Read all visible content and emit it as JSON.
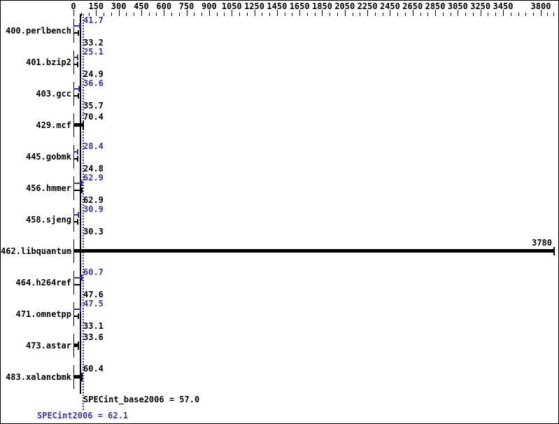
{
  "chart_data": {
    "type": "bar",
    "orientation": "horizontal",
    "title": "",
    "xlabel": "",
    "ylabel": "",
    "x_axis": {
      "tick_labels": [
        "0",
        "150",
        "300",
        "450",
        "600",
        "750",
        "900",
        "1050",
        "1250",
        "1450",
        "1650",
        "1850",
        "2050",
        "2250",
        "2450",
        "2650",
        "2850",
        "3050",
        "3250",
        "3450",
        "3800"
      ],
      "min": 0,
      "max": 3800,
      "minor_ticks_between_majors": 2
    },
    "colors": {
      "peak": "#3333b4",
      "base": "#000000"
    },
    "rows": [
      {
        "name": "400.perlbench",
        "peak": 41.7,
        "base": 33.2,
        "peak_label": "41.7",
        "base_label": "33.2"
      },
      {
        "name": "401.bzip2",
        "peak": 25.1,
        "base": 24.9,
        "peak_label": "25.1",
        "base_label": "24.9"
      },
      {
        "name": "403.gcc",
        "peak": 36.6,
        "base": 35.7,
        "peak_label": "36.6",
        "base_label": "35.7"
      },
      {
        "name": "429.mcf",
        "value": 70.4,
        "value_label": "70.4"
      },
      {
        "name": "445.gobmk",
        "peak": 28.4,
        "base": 24.8,
        "peak_label": "28.4",
        "base_label": "24.8"
      },
      {
        "name": "456.hmmer",
        "peak": 62.9,
        "base": 62.9,
        "peak_label": "62.9",
        "base_label": "62.9"
      },
      {
        "name": "458.sjeng",
        "peak": 30.9,
        "base": 30.3,
        "peak_label": "30.9",
        "base_label": "30.3"
      },
      {
        "name": "462.libquantum",
        "value": 3780,
        "value_label": "3780",
        "value_label_position": "bar_end"
      },
      {
        "name": "464.h264ref",
        "peak": 60.7,
        "base": 47.6,
        "peak_label": "60.7",
        "base_label": "47.6"
      },
      {
        "name": "471.omnetpp",
        "peak": 47.5,
        "base": 33.1,
        "peak_label": "47.5",
        "base_label": "33.1"
      },
      {
        "name": "473.astar",
        "value": 33.6,
        "value_label": "33.6"
      },
      {
        "name": "483.xalancbmk",
        "value": 60.4,
        "value_label": "60.4"
      }
    ],
    "summary": {
      "base_value": 57.0,
      "peak_value": 62.1,
      "base_text": "SPECint_base2006 = 57.0",
      "peak_text": "SPECint2006 = 62.1"
    }
  }
}
